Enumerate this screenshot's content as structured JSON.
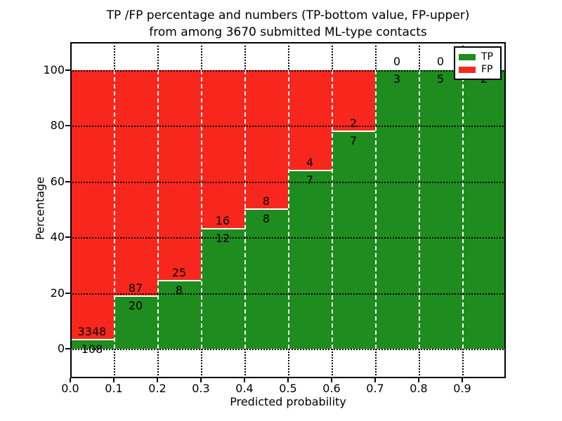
{
  "figure": {
    "title_line1": "TP /FP percentage and numbers (TP-bottom value, FP-upper)",
    "title_line2": "from among 3670 submitted ML-type contacts"
  },
  "chart_data": {
    "type": "bar",
    "stacked": true,
    "orientation": "vertical",
    "title": "TP /FP percentage and numbers (TP-bottom value, FP-upper) from among 3670 submitted ML-type contacts",
    "total_contacts": 3670,
    "bins_start": [
      0.0,
      0.1,
      0.2,
      0.3,
      0.4,
      0.5,
      0.6,
      0.7,
      0.8,
      0.9
    ],
    "bin_width": 0.1,
    "series": [
      {
        "name": "TP",
        "color": "#1e8c1e",
        "counts": [
          108,
          20,
          8,
          12,
          8,
          7,
          7,
          3,
          5,
          2
        ]
      },
      {
        "name": "FP",
        "color": "#f8271d",
        "counts": [
          3348,
          87,
          25,
          16,
          8,
          4,
          2,
          0,
          0,
          0
        ]
      }
    ],
    "tp_percent": [
      3.13,
      18.69,
      24.24,
      42.86,
      50.0,
      63.64,
      77.78,
      100.0,
      100.0,
      100.0
    ],
    "xlabel": "Predicted probability",
    "ylabel": "Percentage",
    "x_tick_labels": [
      "0.0",
      "0.1",
      "0.2",
      "0.3",
      "0.4",
      "0.5",
      "0.6",
      "0.7",
      "0.8",
      "0.9"
    ],
    "y_tick_values": [
      0,
      20,
      40,
      60,
      80,
      100
    ],
    "y_tick_labels": [
      "0",
      "20",
      "40",
      "60",
      "80",
      "100"
    ],
    "xlim": [
      0.0,
      1.0
    ],
    "ylim": [
      -10.6,
      110.1
    ],
    "grid": "dotted",
    "grid_color": "#000000",
    "bar_edge_color": "#ffffff",
    "legend": {
      "position": "upper right",
      "entries": [
        {
          "label": "TP",
          "color": "#1e8c1e"
        },
        {
          "label": "FP",
          "color": "#f8271d"
        }
      ]
    }
  }
}
